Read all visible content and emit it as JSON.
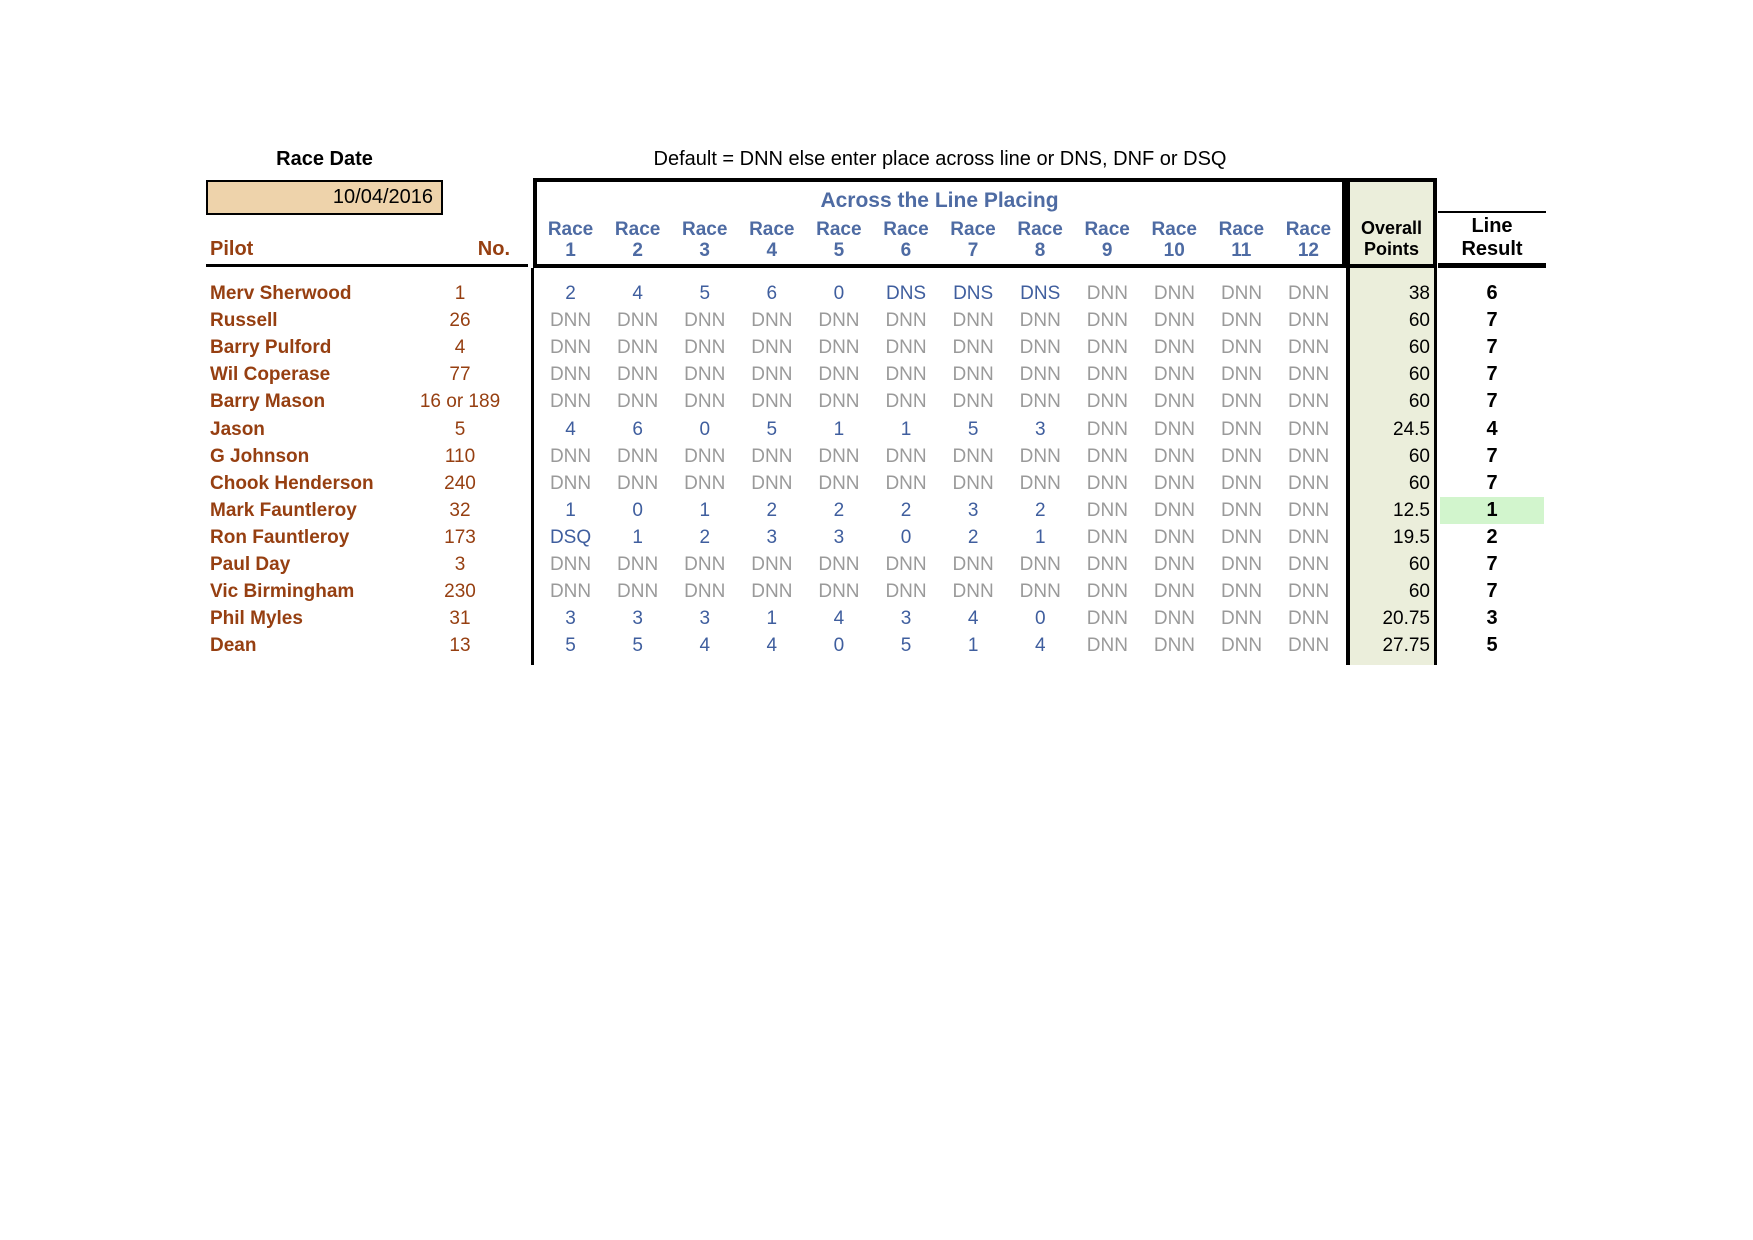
{
  "page": {
    "race_date_label": "Race Date",
    "race_date_value": "10/04/2016",
    "instruction": "Default = DNN else enter place across line or DNS, DNF or DSQ",
    "group_header": "Across the Line Placing",
    "race_label": "Race",
    "race_numbers": [
      "1",
      "2",
      "3",
      "4",
      "5",
      "6",
      "7",
      "8",
      "9",
      "10",
      "11",
      "12"
    ],
    "overall_line1": "Overall",
    "overall_line2": "Points",
    "result_line1": "Line",
    "result_line2": "Result",
    "pilot_header": "Pilot",
    "no_header": "No."
  },
  "colors": {
    "pilot_brown": "#963F11",
    "header_blue": "#4E6BA3",
    "entered_blue": "#3F5E9E",
    "default_gray": "#9A9A9A",
    "date_cell_bg": "#EED3AB",
    "points_col_bg": "#EBEEDB",
    "highlight_green": "#D2F5CD"
  },
  "rows": [
    {
      "pilot": "Merv Sherwood",
      "no": "1",
      "races": [
        "2",
        "4",
        "5",
        "6",
        "0",
        "DNS",
        "DNS",
        "DNS",
        "DNN",
        "DNN",
        "DNN",
        "DNN"
      ],
      "overall": "38",
      "line_result": "6",
      "highlight": false
    },
    {
      "pilot": "Russell",
      "no": "26",
      "races": [
        "DNN",
        "DNN",
        "DNN",
        "DNN",
        "DNN",
        "DNN",
        "DNN",
        "DNN",
        "DNN",
        "DNN",
        "DNN",
        "DNN"
      ],
      "overall": "60",
      "line_result": "7",
      "highlight": false
    },
    {
      "pilot": "Barry Pulford",
      "no": "4",
      "races": [
        "DNN",
        "DNN",
        "DNN",
        "DNN",
        "DNN",
        "DNN",
        "DNN",
        "DNN",
        "DNN",
        "DNN",
        "DNN",
        "DNN"
      ],
      "overall": "60",
      "line_result": "7",
      "highlight": false
    },
    {
      "pilot": "Wil Coperase",
      "no": "77",
      "races": [
        "DNN",
        "DNN",
        "DNN",
        "DNN",
        "DNN",
        "DNN",
        "DNN",
        "DNN",
        "DNN",
        "DNN",
        "DNN",
        "DNN"
      ],
      "overall": "60",
      "line_result": "7",
      "highlight": false
    },
    {
      "pilot": "Barry Mason",
      "no": "16 or 189",
      "races": [
        "DNN",
        "DNN",
        "DNN",
        "DNN",
        "DNN",
        "DNN",
        "DNN",
        "DNN",
        "DNN",
        "DNN",
        "DNN",
        "DNN"
      ],
      "overall": "60",
      "line_result": "7",
      "highlight": false
    },
    {
      "pilot": "Jason",
      "no": "5",
      "races": [
        "4",
        "6",
        "0",
        "5",
        "1",
        "1",
        "5",
        "3",
        "DNN",
        "DNN",
        "DNN",
        "DNN"
      ],
      "overall": "24.5",
      "line_result": "4",
      "highlight": false
    },
    {
      "pilot": "G Johnson",
      "no": "110",
      "races": [
        "DNN",
        "DNN",
        "DNN",
        "DNN",
        "DNN",
        "DNN",
        "DNN",
        "DNN",
        "DNN",
        "DNN",
        "DNN",
        "DNN"
      ],
      "overall": "60",
      "line_result": "7",
      "highlight": false
    },
    {
      "pilot": "Chook Henderson",
      "no": "240",
      "races": [
        "DNN",
        "DNN",
        "DNN",
        "DNN",
        "DNN",
        "DNN",
        "DNN",
        "DNN",
        "DNN",
        "DNN",
        "DNN",
        "DNN"
      ],
      "overall": "60",
      "line_result": "7",
      "highlight": false
    },
    {
      "pilot": "Mark Fauntleroy",
      "no": "32",
      "races": [
        "1",
        "0",
        "1",
        "2",
        "2",
        "2",
        "3",
        "2",
        "DNN",
        "DNN",
        "DNN",
        "DNN"
      ],
      "overall": "12.5",
      "line_result": "1",
      "highlight": true
    },
    {
      "pilot": "Ron Fauntleroy",
      "no": "173",
      "races": [
        "DSQ",
        "1",
        "2",
        "3",
        "3",
        "0",
        "2",
        "1",
        "DNN",
        "DNN",
        "DNN",
        "DNN"
      ],
      "overall": "19.5",
      "line_result": "2",
      "highlight": false
    },
    {
      "pilot": "Paul Day",
      "no": "3",
      "races": [
        "DNN",
        "DNN",
        "DNN",
        "DNN",
        "DNN",
        "DNN",
        "DNN",
        "DNN",
        "DNN",
        "DNN",
        "DNN",
        "DNN"
      ],
      "overall": "60",
      "line_result": "7",
      "highlight": false
    },
    {
      "pilot": "Vic Birmingham",
      "no": "230",
      "races": [
        "DNN",
        "DNN",
        "DNN",
        "DNN",
        "DNN",
        "DNN",
        "DNN",
        "DNN",
        "DNN",
        "DNN",
        "DNN",
        "DNN"
      ],
      "overall": "60",
      "line_result": "7",
      "highlight": false
    },
    {
      "pilot": "Phil Myles",
      "no": "31",
      "races": [
        "3",
        "3",
        "3",
        "1",
        "4",
        "3",
        "4",
        "0",
        "DNN",
        "DNN",
        "DNN",
        "DNN"
      ],
      "overall": "20.75",
      "line_result": "3",
      "highlight": false
    },
    {
      "pilot": "Dean",
      "no": "13",
      "races": [
        "5",
        "5",
        "4",
        "4",
        "0",
        "5",
        "1",
        "4",
        "DNN",
        "DNN",
        "DNN",
        "DNN"
      ],
      "overall": "27.75",
      "line_result": "5",
      "highlight": false
    }
  ]
}
